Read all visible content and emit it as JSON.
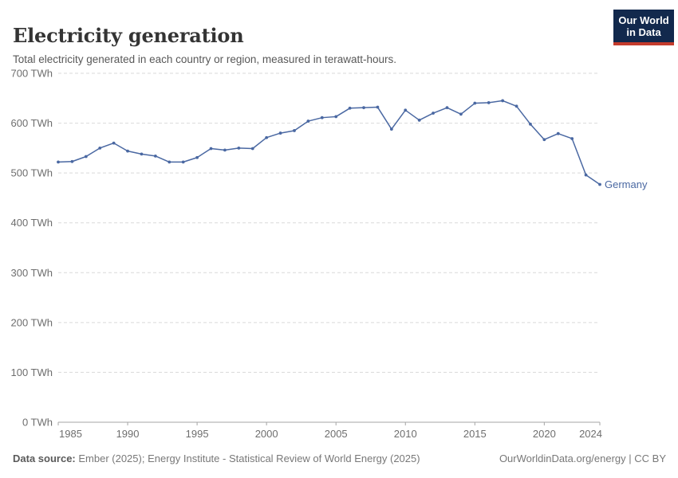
{
  "header": {
    "title": "Electricity generation",
    "subtitle": "Total electricity generated in each country or region, measured in terawatt-hours."
  },
  "logo": {
    "line1": "Our World",
    "line2": "in Data",
    "bg_color": "#12294d",
    "accent_color": "#c43b2c"
  },
  "chart_data": {
    "type": "line",
    "title": "Electricity generation",
    "xlabel": "",
    "ylabel": "TWh",
    "ylim": [
      0,
      700
    ],
    "yticks": [
      0,
      100,
      200,
      300,
      400,
      500,
      600,
      700
    ],
    "ytick_format": "{v} TWh",
    "xticks": [
      1985,
      1990,
      1995,
      2000,
      2005,
      2010,
      2015,
      2020,
      2024
    ],
    "grid": "horizontal-dashed",
    "legend_position": "end-of-line-label",
    "x": [
      1985,
      1986,
      1987,
      1988,
      1989,
      1990,
      1991,
      1992,
      1993,
      1994,
      1995,
      1996,
      1997,
      1998,
      1999,
      2000,
      2001,
      2002,
      2003,
      2004,
      2005,
      2006,
      2007,
      2008,
      2009,
      2010,
      2011,
      2012,
      2013,
      2014,
      2015,
      2016,
      2017,
      2018,
      2019,
      2020,
      2021,
      2022,
      2023,
      2024
    ],
    "series": [
      {
        "name": "Germany",
        "color": "#4a68a2",
        "values": [
          522,
          523,
          533,
          550,
          560,
          544,
          538,
          534,
          522,
          522,
          531,
          549,
          546,
          550,
          549,
          571,
          580,
          585,
          604,
          611,
          613,
          630,
          631,
          632,
          588,
          626,
          606,
          620,
          631,
          618,
          640,
          641,
          645,
          634,
          598,
          567,
          579,
          569,
          496,
          477
        ]
      }
    ]
  },
  "colors": {
    "grid": "#d9d9d9",
    "axis": "#a5a5a5",
    "tick_label": "#6e6e6e"
  },
  "footer": {
    "source_label": "Data source:",
    "source_text": " Ember (2025); Energy Institute - Statistical Review of World Energy (2025)",
    "rights": "OurWorldinData.org/energy | CC BY"
  }
}
